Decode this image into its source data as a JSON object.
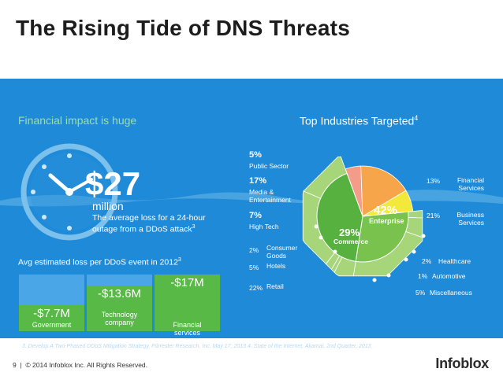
{
  "title": "The Rising Tide of DNS Threats",
  "left": {
    "heading": "Financial impact is huge",
    "big_number": "$27",
    "big_unit": "million",
    "average_text": "The average loss for a 24-hour outage from a DDoS attack",
    "average_sup": "3",
    "estimate_text": "Avg estimated loss per DDoS event in 2012",
    "estimate_sup": "3",
    "bars": [
      {
        "value_label": "-$7.7M",
        "category": "Government",
        "value": -7.7,
        "color": "#58b947"
      },
      {
        "value_label": "-$13.6M",
        "category": "Technology company",
        "value": -13.6,
        "color": "#58b947"
      },
      {
        "value_label": "-$17M",
        "category": "Financial services",
        "value": -17,
        "color": "#58b947"
      }
    ]
  },
  "right": {
    "heading": "Top Industries Targeted",
    "heading_sup": "4",
    "slices": [
      {
        "pct": "5%",
        "name": "Public Sector",
        "value": 5,
        "color": "#f39c8a"
      },
      {
        "pct": "17%",
        "name": "Media & Entertainment",
        "value": 17,
        "color": "#f7a54a"
      },
      {
        "pct": "7%",
        "name": "High Tech",
        "value": 7,
        "color": "#f2e93b"
      },
      {
        "pct": "2%",
        "name": "Consumer Goods",
        "value": 2,
        "color": "#a7d57a"
      },
      {
        "pct": "5%",
        "name": "Hotels",
        "value": 5,
        "color": "#a7d57a"
      },
      {
        "pct": "22%",
        "name": "Retail",
        "value": 22,
        "color": "#a7d57a"
      },
      {
        "pct": "5%",
        "name": "Miscellaneous",
        "value": 5,
        "color": "#a7d57a"
      },
      {
        "pct": "1%",
        "name": "Automotive",
        "value": 1,
        "color": "#a7d57a"
      },
      {
        "pct": "2%",
        "name": "Healthcare",
        "value": 2,
        "color": "#a7d57a"
      },
      {
        "pct": "21%",
        "name": "Business Services",
        "value": 21,
        "color": "#a7d57a"
      },
      {
        "pct": "13%",
        "name": "Financial Services",
        "value": 13,
        "color": "#a7d57a"
      }
    ],
    "enterprise_pct": "42%",
    "enterprise_label": "Enterprise",
    "commerce_pct": "29%",
    "commerce_label": "Commerce"
  },
  "footnote": "3. Develop A Two-Phased DDoS Mitigation Strategy, Forrester Research, Inc. May 17, 2013   4. State of the Internet, Akamai, 2nd Quarter, 2013",
  "footer": {
    "page": "9",
    "copyright": "© 2014 Infoblox Inc. All Rights Reserved.",
    "logo": "Infoblox"
  }
}
